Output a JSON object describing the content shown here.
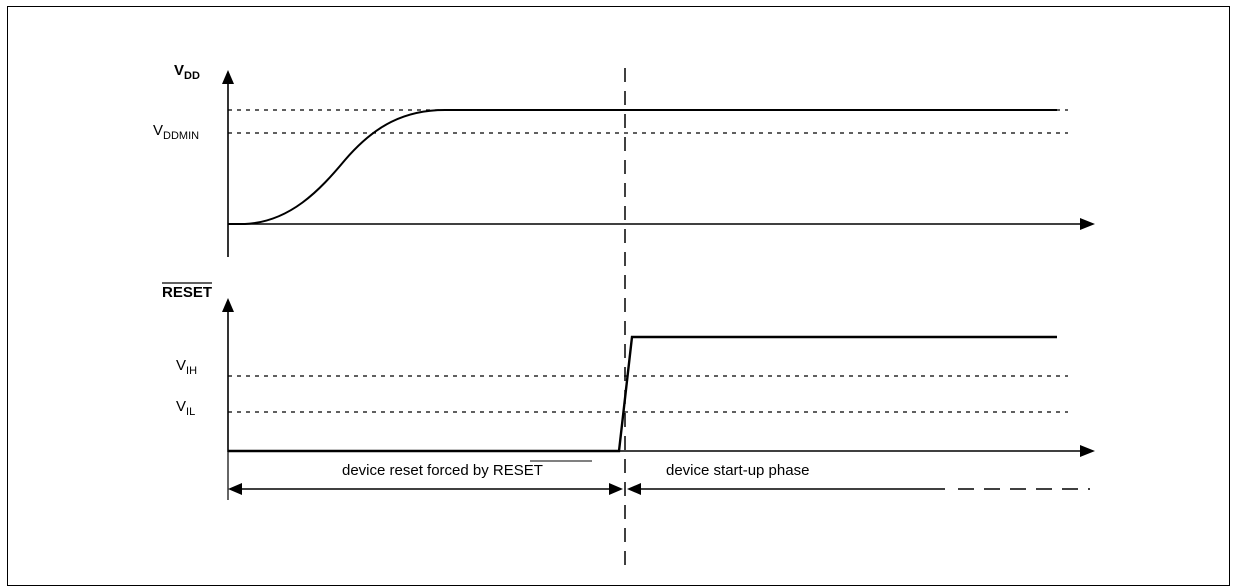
{
  "vdd_axis": {
    "main": "V",
    "sub": "DD"
  },
  "reset_axis": {
    "label": "RESET"
  },
  "levels": {
    "vddmin": {
      "main": "V",
      "sub": "DDMIN"
    },
    "vih": {
      "main": "V",
      "sub": "IH"
    },
    "vil": {
      "main": "V",
      "sub": "IL"
    }
  },
  "phases": {
    "reset_forced": {
      "text": "device reset forced by ",
      "signal": "RESET"
    },
    "startup": "device start-up phase"
  }
}
